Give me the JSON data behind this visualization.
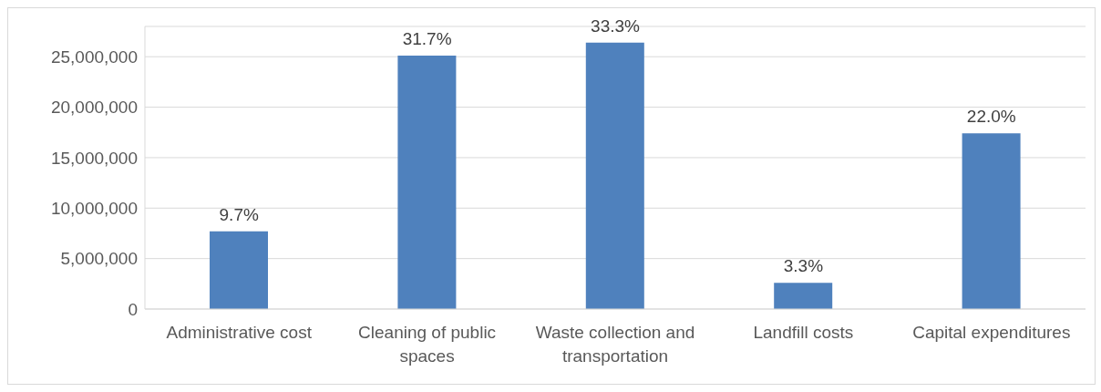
{
  "chart_data": {
    "type": "bar",
    "categories": [
      "Administrative cost",
      "Cleaning of public spaces",
      "Waste collection and transportation",
      "Landfill costs",
      "Capital expenditures"
    ],
    "values": [
      7700000,
      25100000,
      26400000,
      2600000,
      17400000
    ],
    "annotations": [
      {
        "text": "9.7%",
        "x": "Administrative cost",
        "y": 7700000
      },
      {
        "text": "31.7%",
        "x": "Cleaning of public spaces",
        "y": 25100000
      },
      {
        "text": "33.3%",
        "x": "Waste collection and transportation",
        "y": 26400000
      },
      {
        "text": "3.3%",
        "x": "Landfill costs",
        "y": 2600000
      },
      {
        "text": "22.0%",
        "x": "Capital expenditures",
        "y": 17400000
      }
    ],
    "color": "#4f81bd",
    "ylim": [
      0,
      28000000
    ],
    "yticks": [
      {
        "value": 0,
        "label": "0"
      },
      {
        "value": 5000000,
        "label": "5,000,000"
      },
      {
        "value": 10000000,
        "label": "10,000,000"
      },
      {
        "value": 15000000,
        "label": "15,000,000"
      },
      {
        "value": 20000000,
        "label": "20,000,000"
      },
      {
        "value": 25000000,
        "label": "25,000,000"
      }
    ],
    "grid": "y"
  }
}
